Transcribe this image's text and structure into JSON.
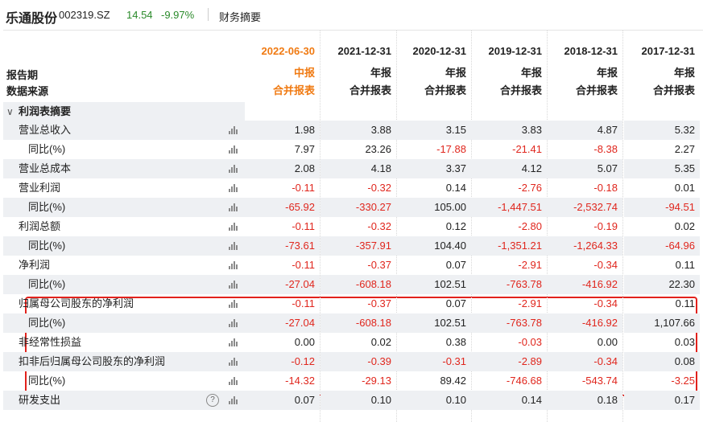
{
  "header": {
    "stock_name": "乐通股份",
    "stock_code": "002319.SZ",
    "price": "14.54",
    "change_pct": "-9.97%",
    "tab": "财务摘要"
  },
  "columns": [
    {
      "date": "2022-06-30",
      "type": "中报",
      "source": "合并报表",
      "current": true
    },
    {
      "date": "2021-12-31",
      "type": "年报",
      "source": "合并报表",
      "current": false
    },
    {
      "date": "2020-12-31",
      "type": "年报",
      "source": "合并报表",
      "current": false
    },
    {
      "date": "2019-12-31",
      "type": "年报",
      "source": "合并报表",
      "current": false
    },
    {
      "date": "2018-12-31",
      "type": "年报",
      "source": "合并报表",
      "current": false
    },
    {
      "date": "2017-12-31",
      "type": "年报",
      "source": "合并报表",
      "current": false
    }
  ],
  "labels": {
    "report_period": "报告期",
    "data_source": "数据来源",
    "section": "利润表摘要"
  },
  "rows": [
    {
      "label": "营业总收入",
      "indent": 1,
      "values": [
        "1.98",
        "3.88",
        "3.15",
        "3.83",
        "4.87",
        "5.32"
      ]
    },
    {
      "label": "同比(%)",
      "indent": 2,
      "values": [
        "7.97",
        "23.26",
        "-17.88",
        "-21.41",
        "-8.38",
        "2.27"
      ]
    },
    {
      "label": "营业总成本",
      "indent": 1,
      "values": [
        "2.08",
        "4.18",
        "3.37",
        "4.12",
        "5.07",
        "5.35"
      ]
    },
    {
      "label": "营业利润",
      "indent": 1,
      "values": [
        "-0.11",
        "-0.32",
        "0.14",
        "-2.76",
        "-0.18",
        "0.01"
      ]
    },
    {
      "label": "同比(%)",
      "indent": 2,
      "values": [
        "-65.92",
        "-330.27",
        "105.00",
        "-1,447.51",
        "-2,532.74",
        "-94.51"
      ]
    },
    {
      "label": "利润总额",
      "indent": 1,
      "values": [
        "-0.11",
        "-0.32",
        "0.12",
        "-2.80",
        "-0.19",
        "0.02"
      ]
    },
    {
      "label": "同比(%)",
      "indent": 2,
      "values": [
        "-73.61",
        "-357.91",
        "104.40",
        "-1,351.21",
        "-1,264.33",
        "-64.96"
      ]
    },
    {
      "label": "净利润",
      "indent": 1,
      "values": [
        "-0.11",
        "-0.37",
        "0.07",
        "-2.91",
        "-0.34",
        "0.11"
      ]
    },
    {
      "label": "同比(%)",
      "indent": 2,
      "values": [
        "-27.04",
        "-608.18",
        "102.51",
        "-763.78",
        "-416.92",
        "22.30"
      ]
    },
    {
      "label": "归属母公司股东的净利润",
      "indent": 1,
      "values": [
        "-0.11",
        "-0.37",
        "0.07",
        "-2.91",
        "-0.34",
        "0.11"
      ]
    },
    {
      "label": "同比(%)",
      "indent": 2,
      "values": [
        "-27.04",
        "-608.18",
        "102.51",
        "-763.78",
        "-416.92",
        "1,107.66"
      ]
    },
    {
      "label": "非经常性损益",
      "indent": 1,
      "values": [
        "0.00",
        "0.02",
        "0.38",
        "-0.03",
        "0.00",
        "0.03"
      ]
    },
    {
      "label": "扣非后归属母公司股东的净利润",
      "indent": 1,
      "values": [
        "-0.12",
        "-0.39",
        "-0.31",
        "-2.89",
        "-0.34",
        "0.08"
      ]
    },
    {
      "label": "同比(%)",
      "indent": 2,
      "values": [
        "-14.32",
        "-29.13",
        "89.42",
        "-746.68",
        "-543.74",
        "-3.25"
      ]
    },
    {
      "label": "研发支出",
      "indent": 1,
      "values": [
        "0.07",
        "0.10",
        "0.10",
        "0.14",
        "0.18",
        "0.17"
      ],
      "help": true
    }
  ],
  "colors": {
    "negative": "#e0261d",
    "current": "#f07a12",
    "up": "#2a8a2a",
    "highlight": "#e2211c"
  }
}
